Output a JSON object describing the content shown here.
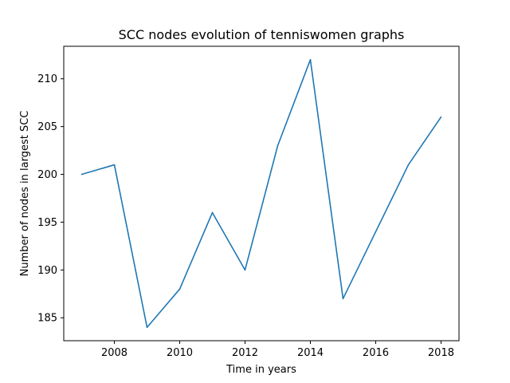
{
  "chart_data": {
    "type": "line",
    "title": "SCC nodes evolution of tenniswomen graphs",
    "xlabel": "Time in years",
    "ylabel": "Number of nodes in largest SCC",
    "xlim": [
      2006.45,
      2018.55
    ],
    "ylim": [
      182.6,
      213.4
    ],
    "x_ticks": [
      2008,
      2010,
      2012,
      2014,
      2016,
      2018
    ],
    "y_ticks": [
      185,
      190,
      195,
      200,
      205,
      210
    ],
    "grid": false,
    "series": [
      {
        "color": "#1f77b4",
        "x": [
          2007,
          2008,
          2009,
          2010,
          2011,
          2012,
          2013,
          2014,
          2015,
          2016,
          2017,
          2018
        ],
        "y": [
          200,
          201,
          184,
          188,
          196,
          190,
          203,
          212,
          187,
          194,
          201,
          206
        ]
      }
    ]
  }
}
